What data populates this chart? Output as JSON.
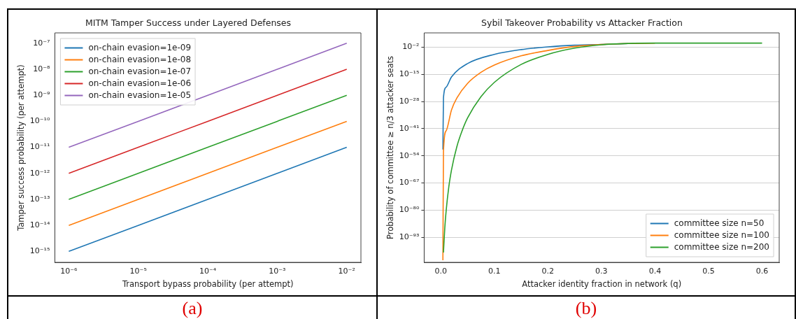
{
  "chart_data": [
    {
      "type": "line",
      "title": "MITM Tamper Success under Layered Defenses",
      "xlabel": "Transport bypass probability (per attempt)",
      "ylabel": "Tamper success probability (per attempt)",
      "log": "xy",
      "grid": false,
      "legend": "top left",
      "xlim": [
        6.3e-07,
        0.016
      ],
      "xticks": [
        {
          "value": 1e-06,
          "label": "10⁻⁶"
        },
        {
          "value": 1e-05,
          "label": "10⁻⁵"
        },
        {
          "value": 0.0001,
          "label": "10⁻⁴"
        },
        {
          "value": 0.001,
          "label": "10⁻³"
        },
        {
          "value": 0.01,
          "label": "10⁻²"
        }
      ],
      "ylim": [
        3.8e-16,
        2.5e-07
      ],
      "yticks": [
        {
          "value": 1e-15,
          "label": "10⁻¹⁵"
        },
        {
          "value": 1e-14,
          "label": "10⁻¹⁴"
        },
        {
          "value": 1e-13,
          "label": "10⁻¹³"
        },
        {
          "value": 1e-12,
          "label": "10⁻¹²"
        },
        {
          "value": 1e-11,
          "label": "10⁻¹¹"
        },
        {
          "value": 1e-10,
          "label": "10⁻¹⁰"
        },
        {
          "value": 1e-09,
          "label": "10⁻⁹"
        },
        {
          "value": 1e-08,
          "label": "10⁻⁸"
        },
        {
          "value": 1e-07,
          "label": "10⁻⁷"
        }
      ],
      "x": [
        1e-06,
        1e-05,
        0.0001,
        0.001,
        0.01
      ],
      "series": [
        {
          "name": "on-chain evasion=1e-09",
          "color": "#1f77b4",
          "values": [
            1e-15,
            1e-14,
            1e-13,
            1e-12,
            1e-11
          ]
        },
        {
          "name": "on-chain evasion=1e-08",
          "color": "#ff7f0e",
          "values": [
            1e-14,
            1e-13,
            1e-12,
            1e-11,
            1e-10
          ]
        },
        {
          "name": "on-chain evasion=1e-07",
          "color": "#2ca02c",
          "values": [
            1e-13,
            1e-12,
            1e-11,
            1e-10,
            1e-09
          ]
        },
        {
          "name": "on-chain evasion=1e-06",
          "color": "#d62728",
          "values": [
            1e-12,
            1e-11,
            1e-10,
            1e-09,
            1e-08
          ]
        },
        {
          "name": "on-chain evasion=1e-05",
          "color": "#9467bd",
          "values": [
            1e-11,
            1e-10,
            1e-09,
            1e-08,
            1e-07
          ]
        }
      ],
      "annotations": [
        "(a)"
      ]
    },
    {
      "type": "line",
      "title": "Sybil Takeover Probability vs Attacker Fraction",
      "xlabel": "Attacker identity fraction in network (q)",
      "ylabel": "Probability of committee ≥ n/3 attacker seats",
      "log": "y",
      "grid": "y",
      "legend": "bottom right",
      "xlim": [
        -0.031,
        0.632
      ],
      "xticks": [
        {
          "value": 0,
          "label": "0.0"
        },
        0.1,
        0.2,
        0.3,
        0.4,
        0.5,
        0.6
      ],
      "ylim": [
        1e-105,
        80000.0
      ],
      "yticks": [
        {
          "value": 1e-93,
          "label": "10⁻⁹³"
        },
        {
          "value": 1e-80,
          "label": "10⁻⁸⁰"
        },
        {
          "value": 1e-67,
          "label": "10⁻⁶⁷"
        },
        {
          "value": 1e-54,
          "label": "10⁻⁵⁴"
        },
        {
          "value": 1e-41,
          "label": "10⁻⁴¹"
        },
        {
          "value": 1e-28,
          "label": "10⁻²⁸"
        },
        {
          "value": 1e-15,
          "label": "10⁻¹⁵"
        },
        {
          "value": 0.01,
          "label": "10⁻²"
        }
      ],
      "series": [
        {
          "name": "committee size n=50",
          "color": "#1f77b4",
          "x": [
            0.004,
            0.005,
            0.01,
            0.02,
            0.05,
            0.1,
            0.15,
            0.2,
            0.25,
            0.3,
            0.35
          ],
          "values": [
            1e-51,
            6e-27,
            8e-22,
            6e-17,
            1.6e-10,
            4e-06,
            0.0008,
            0.016,
            0.1,
            0.25,
            0.6
          ]
        },
        {
          "name": "committee size n=100",
          "color": "#ff7f0e",
          "x": [
            0.004,
            0.005,
            0.01,
            0.02,
            0.03,
            0.05,
            0.075,
            0.1,
            0.15,
            0.2,
            0.25,
            0.3,
            0.35,
            0.4
          ],
          "values": [
            1e-104,
            1e-52,
            1e-42,
            1e-32,
            5e-27,
            5e-20,
            1e-14,
            3e-11,
            8e-07,
            0.0003,
            0.025,
            0.22,
            0.62,
            0.91
          ]
        },
        {
          "name": "committee size n=200",
          "color": "#2ca02c",
          "x": [
            0.005,
            0.0075,
            0.01,
            0.015,
            0.02,
            0.03,
            0.04,
            0.05,
            0.075,
            0.1,
            0.15,
            0.2,
            0.25,
            0.3,
            0.35,
            0.4,
            0.5,
            0.6
          ],
          "values": [
            5e-101,
            2.5e-89,
            4e-81,
            1.3e-69,
            1.6e-61,
            2.5e-50,
            1.3e-42,
            1.3e-36,
            2e-26,
            1.6e-19,
            6e-11,
            4e-06,
            0.004,
            0.16,
            0.7,
            0.98,
            1,
            1
          ]
        }
      ],
      "annotations": [
        "(b)"
      ]
    }
  ]
}
